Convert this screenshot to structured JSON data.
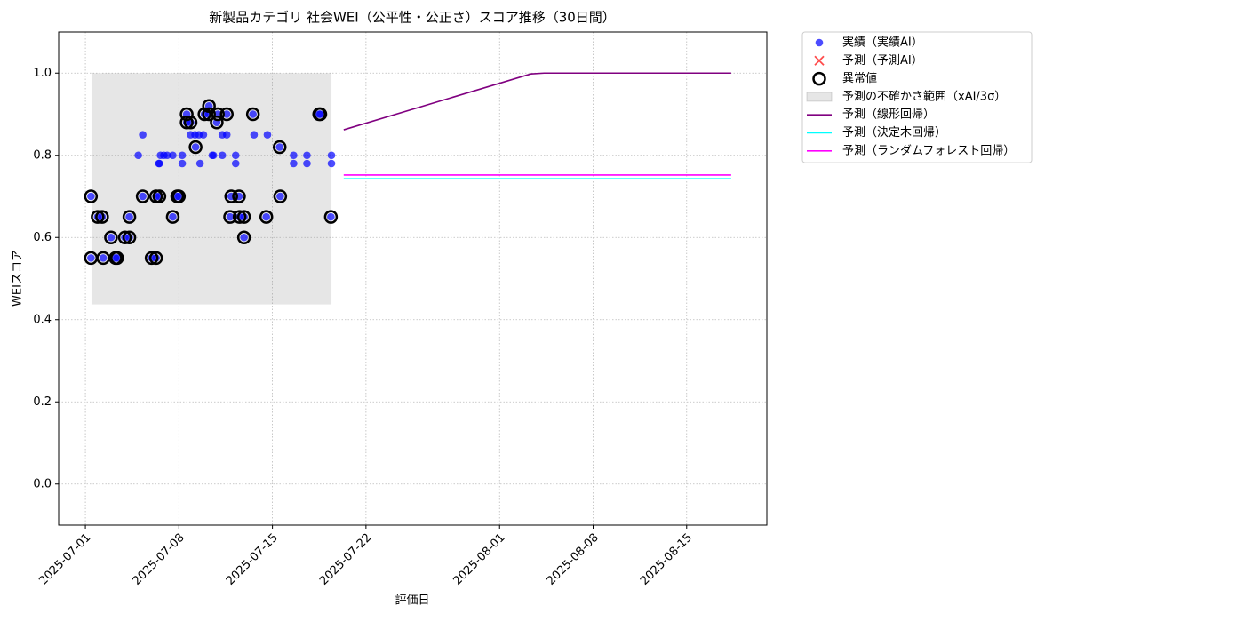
{
  "chart_data": {
    "type": "scatter",
    "title": "新製品カテゴリ 社会WEI（公平性・公正さ）スコア推移（30日間）",
    "xlabel": "評価日",
    "ylabel": "WEIスコア",
    "xlim": [
      "2025-06-29",
      "2025-08-21"
    ],
    "xticks": [
      "2025-07-01",
      "2025-07-08",
      "2025-07-15",
      "2025-07-22",
      "2025-08-01",
      "2025-08-08",
      "2025-08-15"
    ],
    "ylim": [
      -0.1,
      1.1
    ],
    "yticks": [
      {
        "value": 0,
        "label": "0.0"
      },
      0.2,
      0.4,
      0.6,
      0.8,
      {
        "value": 1,
        "label": "1.0"
      }
    ],
    "grid": true,
    "legend": "outside upper right",
    "series": [
      {
        "name": "実績（実績AI）",
        "type": "scatter",
        "marker": "dot",
        "color": "#0000ff",
        "x": [
          "2025-07-01T10:00",
          "2025-07-01T10:00",
          "2025-07-01T22:00",
          "2025-07-02T06:00",
          "2025-07-02T08:00",
          "2025-07-02T22:00",
          "2025-07-03T06:00",
          "2025-07-03T09:00",
          "2025-07-03T23:00",
          "2025-07-04T07:00",
          "2025-07-04T07:00",
          "2025-07-04T23:00",
          "2025-07-05T07:00",
          "2025-07-05T07:00",
          "2025-07-05T23:00",
          "2025-07-06T07:00",
          "2025-07-06T07:00",
          "2025-07-06T12:00",
          "2025-07-06T13:00",
          "2025-07-06T13:00",
          "2025-07-06T15:00",
          "2025-07-06T21:00",
          "2025-07-07T03:00",
          "2025-07-07T13:00",
          "2025-07-07T13:00",
          "2025-07-07T21:00",
          "2025-07-08T00:00",
          "2025-07-08T06:00",
          "2025-07-08T06:00",
          "2025-07-08T14:00",
          "2025-07-08T14:00",
          "2025-07-08T21:00",
          "2025-07-08T21:00",
          "2025-07-09T05:00",
          "2025-07-09T06:00",
          "2025-07-09T12:00",
          "2025-07-09T14:00",
          "2025-07-09T20:00",
          "2025-07-09T22:00",
          "2025-07-10T06:00",
          "2025-07-10T06:00",
          "2025-07-10T12:00",
          "2025-07-10T14:00",
          "2025-07-10T20:00",
          "2025-07-10T22:00",
          "2025-07-11T06:00",
          "2025-07-11T06:00",
          "2025-07-11T14:00",
          "2025-07-11T14:00",
          "2025-07-11T20:00",
          "2025-07-11T22:00",
          "2025-07-12T06:00",
          "2025-07-12T06:00",
          "2025-07-12T12:00",
          "2025-07-12T13:00",
          "2025-07-12T21:00",
          "2025-07-12T21:00",
          "2025-07-13T13:00",
          "2025-07-13T15:00",
          "2025-07-14T13:00",
          "2025-07-14T15:00",
          "2025-07-15T13:00",
          "2025-07-15T14:00",
          "2025-07-16T14:00",
          "2025-07-16T14:00",
          "2025-07-17T14:00",
          "2025-07-17T14:00",
          "2025-07-18T12:00",
          "2025-07-18T14:00",
          "2025-07-19T09:00",
          "2025-07-19T10:00",
          "2025-07-19T10:00"
        ],
        "values": [
          0.7,
          0.55,
          0.65,
          0.65,
          0.55,
          0.6,
          0.55,
          0.55,
          0.6,
          0.6,
          0.65,
          0.8,
          0.85,
          0.7,
          0.55,
          0.55,
          0.7,
          0.78,
          0.7,
          0.78,
          0.8,
          0.8,
          0.8,
          0.8,
          0.65,
          0.7,
          0.7,
          0.78,
          0.8,
          0.9,
          0.88,
          0.88,
          0.85,
          0.85,
          0.82,
          0.85,
          0.78,
          0.85,
          0.9,
          0.92,
          0.9,
          0.8,
          0.8,
          0.88,
          0.9,
          0.85,
          0.8,
          0.85,
          0.9,
          0.65,
          0.7,
          0.8,
          0.78,
          0.7,
          0.65,
          0.65,
          0.6,
          0.9,
          0.85,
          0.65,
          0.85,
          0.82,
          0.7,
          0.8,
          0.78,
          0.8,
          0.78,
          0.9,
          0.9,
          0.65,
          0.8,
          0.78
        ]
      },
      {
        "name": "予測（予測AI）",
        "type": "scatter",
        "marker": "cross",
        "color": "#ff0000",
        "x": [],
        "values": []
      },
      {
        "name": "異常値",
        "type": "scatter",
        "marker": "ring",
        "color": "#000000",
        "x": [
          "2025-07-01T10:00",
          "2025-07-01T10:00",
          "2025-07-01T22:00",
          "2025-07-02T06:00",
          "2025-07-02T08:00",
          "2025-07-02T22:00",
          "2025-07-03T06:00",
          "2025-07-03T09:00",
          "2025-07-03T23:00",
          "2025-07-04T07:00",
          "2025-07-04T07:00",
          "2025-07-05T07:00",
          "2025-07-05T23:00",
          "2025-07-06T07:00",
          "2025-07-06T07:00",
          "2025-07-06T13:00",
          "2025-07-07T13:00",
          "2025-07-07T21:00",
          "2025-07-08T00:00",
          "2025-07-08T14:00",
          "2025-07-08T14:00",
          "2025-07-08T21:00",
          "2025-07-09T06:00",
          "2025-07-09T22:00",
          "2025-07-10T06:00",
          "2025-07-10T06:00",
          "2025-07-10T20:00",
          "2025-07-10T22:00",
          "2025-07-11T14:00",
          "2025-07-11T20:00",
          "2025-07-11T22:00",
          "2025-07-12T12:00",
          "2025-07-12T13:00",
          "2025-07-12T21:00",
          "2025-07-12T21:00",
          "2025-07-13T13:00",
          "2025-07-14T13:00",
          "2025-07-15T13:00",
          "2025-07-15T14:00",
          "2025-07-18T12:00",
          "2025-07-18T14:00",
          "2025-07-19T09:00"
        ],
        "values": [
          0.7,
          0.55,
          0.65,
          0.65,
          0.55,
          0.6,
          0.55,
          0.55,
          0.6,
          0.6,
          0.65,
          0.7,
          0.55,
          0.55,
          0.7,
          0.7,
          0.65,
          0.7,
          0.7,
          0.9,
          0.88,
          0.88,
          0.82,
          0.9,
          0.92,
          0.9,
          0.88,
          0.9,
          0.9,
          0.65,
          0.7,
          0.7,
          0.65,
          0.65,
          0.6,
          0.9,
          0.65,
          0.82,
          0.7,
          0.9,
          0.9,
          0.65
        ]
      },
      {
        "name": "予測の不確かさ範囲（xAI/3σ）",
        "type": "band",
        "color": "#808080",
        "x": [
          "2025-07-01T11:00",
          "2025-07-19T10:00"
        ],
        "lower": [
          0.437,
          0.437
        ],
        "upper": [
          1.0,
          1.0
        ]
      },
      {
        "name": "予測（線形回帰）",
        "type": "line",
        "color": "#800080",
        "x": [
          "2025-07-20T08:00",
          "2025-08-03T08:00",
          "2025-08-04T08:00",
          "2025-08-18T08:00"
        ],
        "values": [
          0.862,
          0.998,
          1.0,
          1.0
        ]
      },
      {
        "name": "予測（決定木回帰）",
        "type": "line",
        "color": "#00ffff",
        "x": [
          "2025-07-20T08:00",
          "2025-08-18T08:00"
        ],
        "values": [
          0.743,
          0.743
        ]
      },
      {
        "name": "予測（ランダムフォレスト回帰）",
        "type": "line",
        "color": "#ff00ff",
        "x": [
          "2025-07-20T08:00",
          "2025-08-18T08:00"
        ],
        "values": [
          0.752,
          0.752
        ]
      }
    ]
  }
}
